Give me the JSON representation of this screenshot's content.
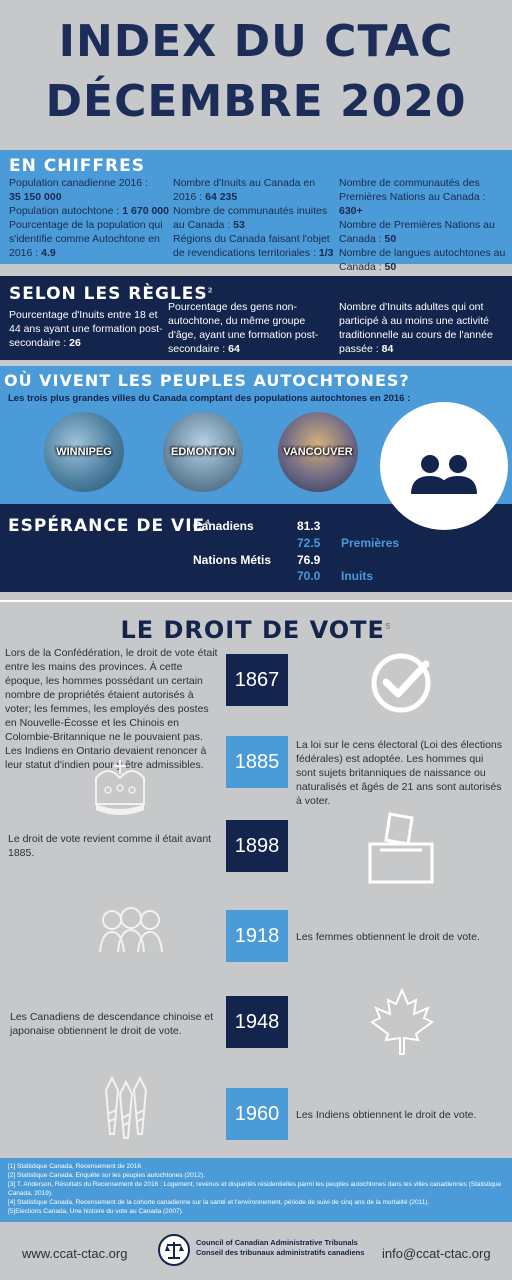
{
  "title": {
    "line1": "INDEX DU CTAC",
    "line2": "DÉCEMBRE 2020"
  },
  "chiffres": {
    "heading": "EN CHIFFRES",
    "c1a_label": "Population canadienne 2016 :",
    "c1a_value": "35 150 000",
    "c1b_label": "Population autochtone :",
    "c1b_value": "1 670 000",
    "c1c_label": "Pourcentage de la population qui s'identifie comme Autochtone en 2016 :",
    "c1c_value": "4.9",
    "c2a_label": "Nombre d'Inuits au Canada en 2016 :",
    "c2a_value": "64 235",
    "c2b_label": "Nombre de communautés inuites au Canada :",
    "c2b_value": "53",
    "c2c_label": "Régions du Canada faisant l'objet de revendications territoriales :",
    "c2c_value": "1/3",
    "c3a_label": "Nombre de communautés des Premières Nations au Canada :",
    "c3a_value": "630+",
    "c3b_label": "Nombre de Premières Nations au Canada :",
    "c3b_value": "50",
    "c3c_label": "Nombre de langues autochtones au Canada :",
    "c3c_value": "50"
  },
  "regles": {
    "heading": "SELON LES RÈGLES",
    "sup": "2",
    "r1_label": "Pourcentage d'Inuits entre 18 et 44 ans ayant une formation post-secondaire :",
    "r1_value": "26",
    "r2_label": "Pourcentage des gens non-autochtone, du même groupe d'âge, ayant une formation post-secondaire :",
    "r2_value": "64",
    "r3_label": "Nombre d'Inuits adultes qui ont participé à au moins une activité traditionnelle au cours de l'année passée :",
    "r3_value": "84"
  },
  "villes": {
    "heading": "OÙ VIVENT LES PEUPLES AUTOCHTONES?",
    "subtitle": "Les trois plus grandes villes du Canada comptant des populations autochtones en 2016 :",
    "city1": "WINNIPEG",
    "city2": "EDMONTON",
    "city3": "VANCOUVER",
    "people_icon": "people-icon"
  },
  "esperance": {
    "heading": "ESPÉRANCE DE VIE",
    "sup": "4",
    "row1_label": "Canadiens",
    "row1_value": "81.3",
    "row2_value": "72.5",
    "row2_label": "Premières",
    "row3_label": "Nations Métis",
    "row3_value": "76.9",
    "row4_value": "70.0",
    "row4_label": "Inuits"
  },
  "vote": {
    "heading": "LE DROIT DE VOTE",
    "sup": "5",
    "intro": "Lors de la Confédération, le droit de vote était entre les mains des provinces.  À cette époque, les hommes possédant un certain nombre de propriétés étaient autorisés à voter; les femmes, les employés des postes en Nouvelle-Écosse et les Chinois en Colombie-Britannique ne le pouvaient pas. Les Indiens en Ontario devaient renoncer à leur statut d'indien pour y être admissibles.",
    "y1867": "1867",
    "y1885": "1885",
    "t1885": "La loi sur le cens électoral (Loi des élections fédérales) est adoptée. Les hommes qui sont sujets britanniques de naissance ou naturalisés et âgés de 21 ans sont autorisés à voter.",
    "y1898": "1898",
    "t1898": "Le droit de vote revient comme il était avant 1885.",
    "y1918": "1918",
    "t1918": "Les femmes obtiennent le droit de vote.",
    "y1948": "1948",
    "t1948": "Les Canadiens de descendance chinoise et japonaise obtiennent le droit de vote.",
    "y1960": "1960",
    "t1960": "Les Indiens obtiennent le droit de vote."
  },
  "footnotes": [
    "[1] Statistique Canada, Recensement de 2016",
    "[2] Statistique Canada, Enquête sur les peuples autochtones (2012).",
    "[3] T. Anderson, Résultats du Recensement de 2016 :  Logement, revenus et disparités résidentielles parmi les peuples autochtones dans les villes canadiennes (Statistique Canada, 2019).",
    "[4] Statistique Canada, Recensement de la cohorte canadienne sur la santé et l'environnement, période de suivi de cinq ans de la mortalité (2011).",
    "[5]Elections Canada, Une histoire du vote au Canada  (2007)."
  ],
  "footer": {
    "website": "www.ccat-ctac.org",
    "org_en": "Council of Canadian Administrative Tribunals",
    "org_fr": "Conseil des tribunaux administratifs canadiens",
    "email": "info@ccat-ctac.org"
  },
  "colors": {
    "navy": "#13244d",
    "blue": "#4a9bd8",
    "grey": "#c7c8ca"
  }
}
